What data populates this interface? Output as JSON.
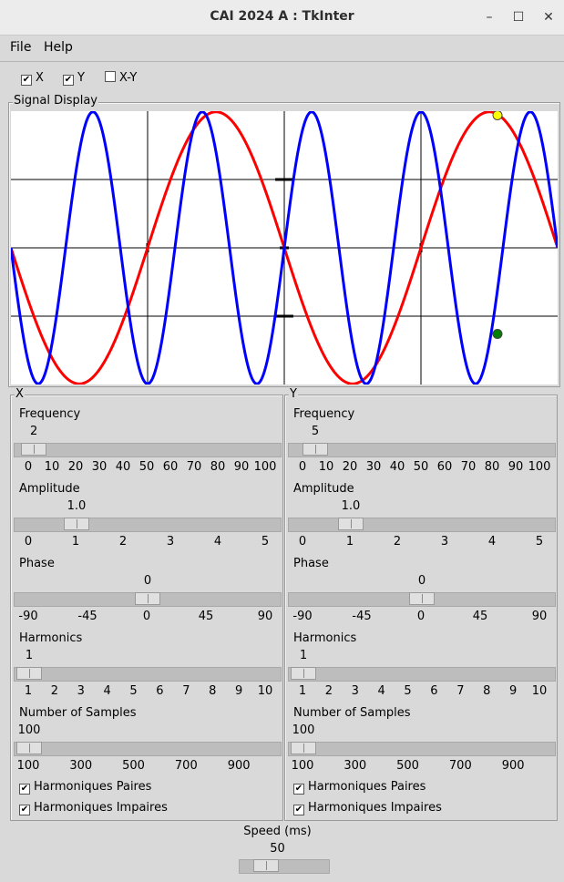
{
  "window": {
    "title": "CAI 2024 A : TkInter",
    "minimize_glyph": "–",
    "maximize_glyph": "☐",
    "close_glyph": "✕"
  },
  "menu": {
    "file": "File",
    "help": "Help"
  },
  "toggles": [
    {
      "label": "X",
      "checked": true
    },
    {
      "label": "Y",
      "checked": true
    },
    {
      "label": "X-Y",
      "checked": false
    }
  ],
  "display": {
    "label": "Signal Display"
  },
  "panels": [
    {
      "label": "X",
      "frequency": {
        "label": "Frequency",
        "value": "2",
        "ticks": [
          "0",
          "10",
          "20",
          "30",
          "40",
          "50",
          "60",
          "70",
          "80",
          "90",
          "100"
        ]
      },
      "amplitude": {
        "label": "Amplitude",
        "value": "1.0",
        "ticks": [
          "0",
          "1",
          "2",
          "3",
          "4",
          "5"
        ]
      },
      "phase": {
        "label": "Phase",
        "value": "0",
        "ticks": [
          "-90",
          "-45",
          "0",
          "45",
          "90"
        ]
      },
      "harmonics": {
        "label": "Harmonics",
        "value": "1",
        "ticks": [
          "1",
          "2",
          "3",
          "4",
          "5",
          "6",
          "7",
          "8",
          "9",
          "10"
        ]
      },
      "samples": {
        "label": "Number of Samples",
        "value": "100",
        "ticks": [
          "100",
          "300",
          "500",
          "700",
          "900"
        ]
      },
      "even": {
        "label": "Harmoniques Paires",
        "checked": true
      },
      "odd": {
        "label": "Harmoniques Impaires",
        "checked": true
      }
    },
    {
      "label": "Y",
      "frequency": {
        "label": "Frequency",
        "value": "5",
        "ticks": [
          "0",
          "10",
          "20",
          "30",
          "40",
          "50",
          "60",
          "70",
          "80",
          "90",
          "100"
        ]
      },
      "amplitude": {
        "label": "Amplitude",
        "value": "1.0",
        "ticks": [
          "0",
          "1",
          "2",
          "3",
          "4",
          "5"
        ]
      },
      "phase": {
        "label": "Phase",
        "value": "0",
        "ticks": [
          "-90",
          "-45",
          "0",
          "45",
          "90"
        ]
      },
      "harmonics": {
        "label": "Harmonics",
        "value": "1",
        "ticks": [
          "1",
          "2",
          "3",
          "4",
          "5",
          "6",
          "7",
          "8",
          "9",
          "10"
        ]
      },
      "samples": {
        "label": "Number of Samples",
        "value": "100",
        "ticks": [
          "100",
          "300",
          "500",
          "700",
          "900"
        ]
      },
      "even": {
        "label": "Harmoniques Paires",
        "checked": true
      },
      "odd": {
        "label": "Harmoniques Impaires",
        "checked": true
      }
    }
  ],
  "speed": {
    "label": "Speed (ms)",
    "value": "50"
  },
  "chart_data": {
    "type": "line",
    "grid": true,
    "x_divisions": 4,
    "y_divisions": 4,
    "xlim": [
      0,
      1
    ],
    "ylim": [
      -1,
      1
    ],
    "series": [
      {
        "frequency": 2,
        "amplitude": 1.0,
        "phase": 0,
        "color": "#ff0000"
      },
      {
        "frequency": 5,
        "amplitude": 1.0,
        "phase": 0,
        "color": "#0000ff"
      }
    ],
    "markers": [
      {
        "x": 0.89,
        "y": 0.97,
        "color": "#ffff00"
      },
      {
        "x": 0.89,
        "y": -0.63,
        "color": "#008000"
      }
    ]
  }
}
